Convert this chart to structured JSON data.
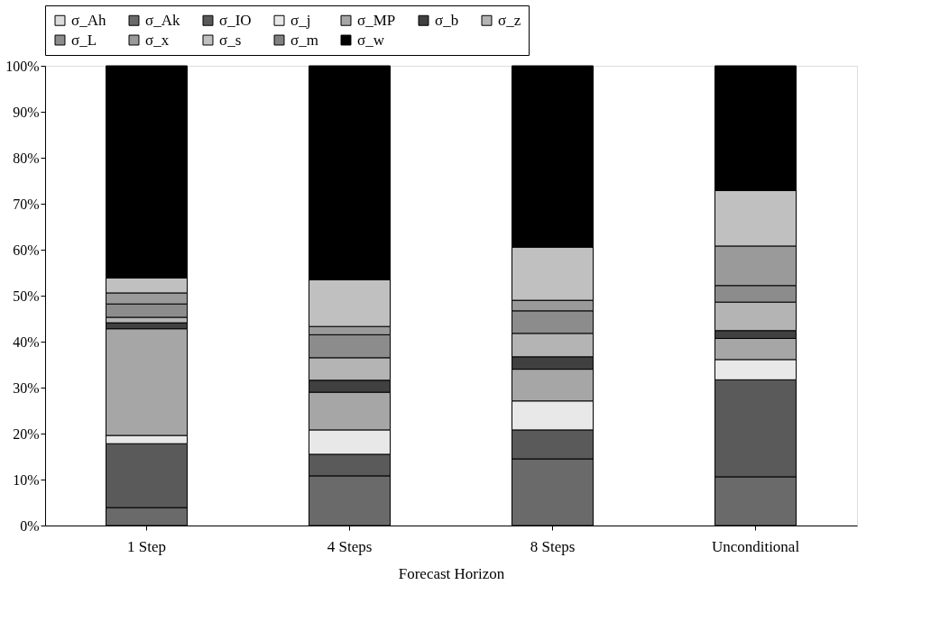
{
  "chart_data": {
    "type": "bar",
    "stacked": true,
    "xlabel": "Forecast Horizon",
    "categories": [
      "1 Step",
      "4 Steps",
      "8 Steps",
      "Unconditional"
    ],
    "series": [
      {
        "name": "σ_Ah",
        "color": "#dcdcdc",
        "values": [
          0,
          0,
          0,
          0
        ]
      },
      {
        "name": "σ_Ak",
        "color": "#6a6a6a",
        "values": [
          3.9,
          10.8,
          14.5,
          10.6
        ]
      },
      {
        "name": "σ_IO",
        "color": "#5a5a5a",
        "values": [
          13.9,
          4.7,
          6.3,
          21.1
        ]
      },
      {
        "name": "σ_j",
        "color": "#e8e8e8",
        "values": [
          1.8,
          5.3,
          6.3,
          4.4
        ]
      },
      {
        "name": "σ_MP",
        "color": "#a6a6a6",
        "values": [
          23.2,
          8.2,
          6.9,
          4.6
        ]
      },
      {
        "name": "σ_b",
        "color": "#404040",
        "values": [
          1.3,
          2.6,
          2.7,
          1.7
        ]
      },
      {
        "name": "σ_z",
        "color": "#b4b4b4",
        "values": [
          1.2,
          4.9,
          5.1,
          6.2
        ]
      },
      {
        "name": "σ_L",
        "color": "#8c8c8c",
        "values": [
          2.9,
          5.0,
          4.9,
          3.6
        ]
      },
      {
        "name": "σ_x",
        "color": "#9a9a9a",
        "values": [
          2.4,
          1.8,
          2.3,
          8.6
        ]
      },
      {
        "name": "σ_s",
        "color": "#c0c0c0",
        "values": [
          3.3,
          10.2,
          11.6,
          12.1
        ]
      },
      {
        "name": "σ_m",
        "color": "#808080",
        "values": [
          0,
          0,
          0,
          0
        ]
      },
      {
        "name": "σ_w",
        "color": "#000000",
        "values": [
          46.1,
          46.5,
          39.4,
          27.1
        ]
      }
    ],
    "ylim": [
      0,
      100
    ],
    "yticks": [
      {
        "value": 0,
        "label": "0%"
      },
      {
        "value": 10,
        "label": "10%"
      },
      {
        "value": 20,
        "label": "20%"
      },
      {
        "value": 30,
        "label": "30%"
      },
      {
        "value": 40,
        "label": "40%"
      },
      {
        "value": 50,
        "label": "50%"
      },
      {
        "value": 60,
        "label": "60%"
      },
      {
        "value": 70,
        "label": "70%"
      },
      {
        "value": 80,
        "label": "80%"
      },
      {
        "value": 90,
        "label": "90%"
      },
      {
        "value": 100,
        "label": "100%"
      }
    ],
    "legend": "top",
    "grid": false
  }
}
